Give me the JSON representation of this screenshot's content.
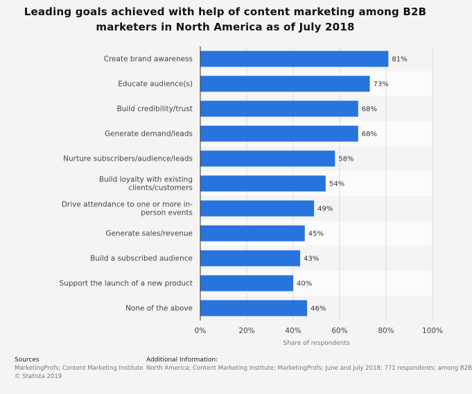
{
  "title_lines": [
    "Leading goals achieved with help of content marketing among B2B",
    "marketers in North America as of July 2018"
  ],
  "chart_data": {
    "type": "bar",
    "orientation": "horizontal",
    "categories": [
      [
        "Create brand awareness"
      ],
      [
        "Educate audience(s)"
      ],
      [
        "Build credibility/trust"
      ],
      [
        "Generate demand/leads"
      ],
      [
        "Nurture subscribers/audience/leads"
      ],
      [
        "Build loyalty with existing",
        "clients/customers"
      ],
      [
        "Drive attendance to one or more in-",
        "person events"
      ],
      [
        "Generate sales/revenue"
      ],
      [
        "Build a subscribed audience"
      ],
      [
        "Support the launch of a new product"
      ],
      [
        "None of the above"
      ]
    ],
    "values": [
      81,
      73,
      68,
      68,
      58,
      54,
      49,
      45,
      43,
      40,
      46
    ],
    "value_labels": [
      "81%",
      "73%",
      "68%",
      "68%",
      "58%",
      "54%",
      "49%",
      "45%",
      "43%",
      "40%",
      "46%"
    ],
    "xlabel": "Share of respondents",
    "xlim": [
      0,
      100
    ],
    "xticks": [
      "0%",
      "20%",
      "40%",
      "60%",
      "80%",
      "100%"
    ],
    "grid": true,
    "bar_color": "#2774de"
  },
  "footer": {
    "sources_heading": "Sources",
    "sources_line1": "MarketingProfs; Content Marketing Institute",
    "sources_line2": "© Statista 2019",
    "info_heading": "Additional Information:",
    "info_text": "North America; Content Marketing Institute; MarketingProfs; June and July 2018; 771 respondents; among B2B"
  }
}
